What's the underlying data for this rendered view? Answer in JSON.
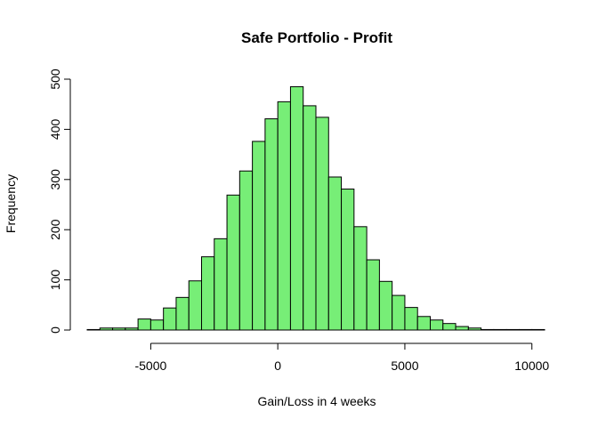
{
  "chart_data": {
    "type": "bar",
    "subtype": "histogram",
    "title": "Safe Portfolio - Profit",
    "xlabel": "Gain/Loss in 4 weeks",
    "ylabel": "Frequency",
    "bar_color": "#77ee77",
    "edge_color": "#000000",
    "bin_width": 500,
    "bins": [
      {
        "start": -7500,
        "end": -7000,
        "count": 1
      },
      {
        "start": -7000,
        "end": -6500,
        "count": 4
      },
      {
        "start": -6500,
        "end": -6000,
        "count": 4
      },
      {
        "start": -6000,
        "end": -5500,
        "count": 4
      },
      {
        "start": -5500,
        "end": -5000,
        "count": 22
      },
      {
        "start": -5000,
        "end": -4500,
        "count": 20
      },
      {
        "start": -4500,
        "end": -4000,
        "count": 44
      },
      {
        "start": -4000,
        "end": -3500,
        "count": 65
      },
      {
        "start": -3500,
        "end": -3000,
        "count": 98
      },
      {
        "start": -3000,
        "end": -2500,
        "count": 146
      },
      {
        "start": -2500,
        "end": -2000,
        "count": 182
      },
      {
        "start": -2000,
        "end": -1500,
        "count": 269
      },
      {
        "start": -1500,
        "end": -1000,
        "count": 317
      },
      {
        "start": -1000,
        "end": -500,
        "count": 376
      },
      {
        "start": -500,
        "end": 0,
        "count": 421
      },
      {
        "start": 0,
        "end": 500,
        "count": 455
      },
      {
        "start": 500,
        "end": 1000,
        "count": 485
      },
      {
        "start": 1000,
        "end": 1500,
        "count": 447
      },
      {
        "start": 1500,
        "end": 2000,
        "count": 424
      },
      {
        "start": 2000,
        "end": 2500,
        "count": 305
      },
      {
        "start": 2500,
        "end": 3000,
        "count": 281
      },
      {
        "start": 3000,
        "end": 3500,
        "count": 206
      },
      {
        "start": 3500,
        "end": 4000,
        "count": 140
      },
      {
        "start": 4000,
        "end": 4500,
        "count": 97
      },
      {
        "start": 4500,
        "end": 5000,
        "count": 69
      },
      {
        "start": 5000,
        "end": 5500,
        "count": 45
      },
      {
        "start": 5500,
        "end": 6000,
        "count": 27
      },
      {
        "start": 6000,
        "end": 6500,
        "count": 20
      },
      {
        "start": 6500,
        "end": 7000,
        "count": 13
      },
      {
        "start": 7000,
        "end": 7500,
        "count": 7
      },
      {
        "start": 7500,
        "end": 8000,
        "count": 4
      },
      {
        "start": 8000,
        "end": 8500,
        "count": 1
      },
      {
        "start": 8500,
        "end": 9000,
        "count": 1
      },
      {
        "start": 9000,
        "end": 9500,
        "count": 1
      },
      {
        "start": 9500,
        "end": 10000,
        "count": 1
      },
      {
        "start": 10000,
        "end": 10500,
        "count": 1
      }
    ],
    "xlim": [
      -7500,
      10500
    ],
    "ylim": [
      0,
      500
    ],
    "x_ticks": [
      -5000,
      0,
      5000,
      10000
    ],
    "x_tick_labels": [
      "-5000",
      "0",
      "5000",
      "10000"
    ],
    "y_ticks": [
      0,
      100,
      200,
      300,
      400,
      500
    ],
    "y_tick_labels": [
      "0",
      "100",
      "200",
      "300",
      "400",
      "500"
    ],
    "grid": false,
    "legend": "none"
  }
}
